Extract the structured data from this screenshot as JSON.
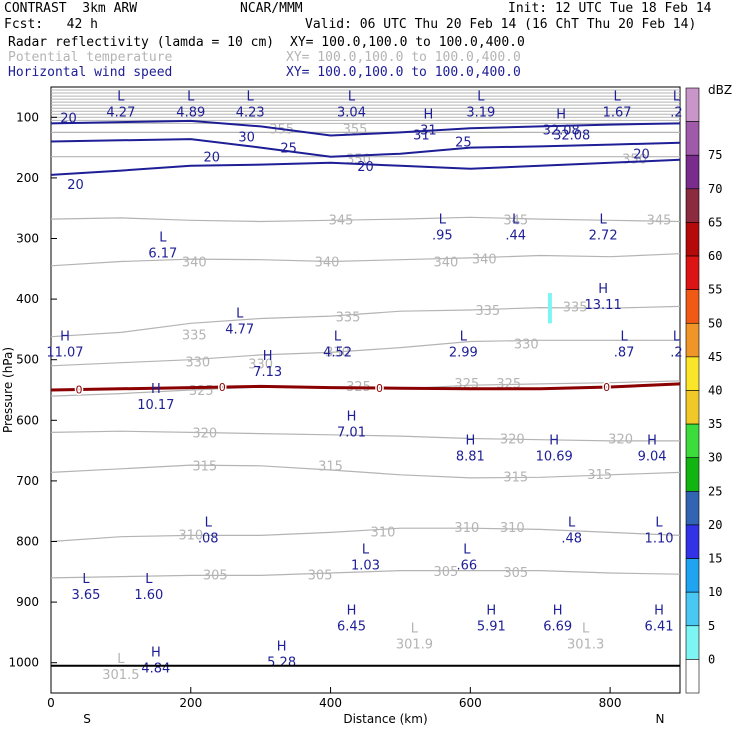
{
  "header": {
    "model": "CONTRAST  3km ARW",
    "org": "NCAR/MMM",
    "init": "Init: 12 UTC Tue 18 Feb 14",
    "fcst": "Fcst:   42 h",
    "valid": "Valid: 06 UTC Thu 20 Feb 14 (16 ChT Thu 20 Feb 14)",
    "field1": "Radar reflectivity (lamda = 10 cm)",
    "field1_xy": "XY= 100.0,100.0 to 100.0,400.0",
    "field2": "Potential temperature",
    "field2_xy": "XY= 100.0,100.0 to 100.0,400.0",
    "field3": "Horizontal wind speed",
    "field3_xy": "XY= 100.0,100.0 to 100.0,400.0"
  },
  "colors": {
    "theta": "#b4b4b4",
    "wind": "#1e1e96",
    "freezing": "#8b0000"
  },
  "chart_data": {
    "type": "contour",
    "xlabel": "Distance (km)",
    "ylabel": "Pressure (hPa)",
    "xlim": [
      0,
      900
    ],
    "ylim": [
      1050,
      50
    ],
    "x_ticks": [
      "0",
      "200",
      "400",
      "600",
      "800"
    ],
    "y_ticks": [
      "100",
      "200",
      "300",
      "400",
      "500",
      "600",
      "700",
      "800",
      "900",
      "1000"
    ],
    "x_end_labels": [
      "S",
      "N"
    ],
    "colorbar": {
      "title": "dBZ",
      "levels": [
        "0",
        "5",
        "10",
        "15",
        "20",
        "25",
        "30",
        "35",
        "40",
        "45",
        "50",
        "55",
        "60",
        "65",
        "70",
        "75"
      ],
      "colors": [
        "#ffffff",
        "#7ef5f5",
        "#49c8f3",
        "#1ea4f0",
        "#3232e6",
        "#3264b4",
        "#12b412",
        "#3cdc3c",
        "#f0c828",
        "#fae628",
        "#f09628",
        "#f05a14",
        "#dc1414",
        "#b40a0a",
        "#8c2a3e",
        "#7a2c8c",
        "#a05aaa",
        "#c896c8"
      ]
    },
    "theta_contours": [
      {
        "value": 355,
        "p": [
          125,
          125,
          125,
          125,
          125,
          125,
          125,
          125,
          125,
          125
        ]
      },
      {
        "value": 350,
        "p": [
          165,
          165,
          165,
          165,
          165,
          165,
          165,
          165,
          165,
          165
        ]
      },
      {
        "value": 345,
        "p": [
          268,
          266,
          270,
          272,
          270,
          268,
          265,
          268,
          270,
          272
        ]
      },
      {
        "value": 340,
        "p": [
          345,
          338,
          334,
          335,
          338,
          335,
          332,
          328,
          330,
          325
        ]
      },
      {
        "value": 335,
        "p": [
          462,
          455,
          440,
          432,
          428,
          420,
          418,
          414,
          415,
          412
        ]
      },
      {
        "value": 330,
        "p": [
          510,
          505,
          500,
          492,
          488,
          480,
          470,
          468,
          468,
          468
        ]
      },
      {
        "value": 325,
        "p": [
          560,
          556,
          550,
          545,
          545,
          548,
          542,
          540,
          538,
          535
        ]
      },
      {
        "value": 320,
        "p": [
          620,
          618,
          620,
          622,
          624,
          626,
          630,
          632,
          634,
          634
        ]
      },
      {
        "value": 315,
        "p": [
          686,
          680,
          674,
          675,
          682,
          690,
          695,
          694,
          690,
          686
        ]
      },
      {
        "value": 310,
        "p": [
          800,
          792,
          790,
          790,
          785,
          778,
          778,
          780,
          785,
          790
        ]
      },
      {
        "value": 305,
        "p": [
          860,
          858,
          856,
          856,
          852,
          848,
          848,
          848,
          852,
          854
        ]
      }
    ],
    "theta_labels": [
      {
        "text": "355",
        "x": 330,
        "p": 120
      },
      {
        "text": "355",
        "x": 435,
        "p": 120
      },
      {
        "text": "350",
        "x": 440,
        "p": 170
      },
      {
        "text": "350",
        "x": 835,
        "p": 170
      },
      {
        "text": "345",
        "x": 415,
        "p": 270
      },
      {
        "text": "345",
        "x": 665,
        "p": 270
      },
      {
        "text": "345",
        "x": 870,
        "p": 270
      },
      {
        "text": "340",
        "x": 205,
        "p": 340
      },
      {
        "text": "340",
        "x": 395,
        "p": 340
      },
      {
        "text": "340",
        "x": 565,
        "p": 340
      },
      {
        "text": "340",
        "x": 620,
        "p": 335
      },
      {
        "text": "335",
        "x": 205,
        "p": 460
      },
      {
        "text": "335",
        "x": 425,
        "p": 430
      },
      {
        "text": "335",
        "x": 625,
        "p": 420
      },
      {
        "text": "335",
        "x": 750,
        "p": 414
      },
      {
        "text": "330",
        "x": 210,
        "p": 505
      },
      {
        "text": "330",
        "x": 300,
        "p": 508
      },
      {
        "text": "330",
        "x": 410,
        "p": 488
      },
      {
        "text": "330",
        "x": 680,
        "p": 475
      },
      {
        "text": "325",
        "x": 215,
        "p": 552
      },
      {
        "text": "325",
        "x": 440,
        "p": 545
      },
      {
        "text": "325",
        "x": 595,
        "p": 540
      },
      {
        "text": "325",
        "x": 655,
        "p": 540
      },
      {
        "text": "320",
        "x": 220,
        "p": 622
      },
      {
        "text": "320",
        "x": 660,
        "p": 632
      },
      {
        "text": "320",
        "x": 815,
        "p": 632
      },
      {
        "text": "315",
        "x": 220,
        "p": 676
      },
      {
        "text": "315",
        "x": 400,
        "p": 676
      },
      {
        "text": "315",
        "x": 665,
        "p": 694
      },
      {
        "text": "315",
        "x": 785,
        "p": 690
      },
      {
        "text": "310",
        "x": 200,
        "p": 790
      },
      {
        "text": "310",
        "x": 475,
        "p": 785
      },
      {
        "text": "310",
        "x": 595,
        "p": 778
      },
      {
        "text": "310",
        "x": 660,
        "p": 778
      },
      {
        "text": "305",
        "x": 235,
        "p": 856
      },
      {
        "text": "305",
        "x": 385,
        "p": 856
      },
      {
        "text": "305",
        "x": 565,
        "p": 850
      },
      {
        "text": "305",
        "x": 665,
        "p": 852
      }
    ],
    "wind_contours": [
      {
        "value": 20,
        "p": [
          195,
          188,
          180,
          178,
          175,
          180,
          185,
          180,
          175,
          170
        ]
      },
      {
        "value": 25,
        "p": [
          140,
          138,
          136,
          150,
          165,
          160,
          150,
          148,
          145,
          142
        ]
      },
      {
        "value": 30,
        "p": [
          110,
          108,
          106,
          115,
          130,
          125,
          118,
          115,
          112,
          110
        ]
      }
    ],
    "wind_labels": [
      {
        "text": "20",
        "x": 25,
        "p": 100
      },
      {
        "text": "20",
        "x": 35,
        "p": 210
      },
      {
        "text": "20",
        "x": 230,
        "p": 165
      },
      {
        "text": "20",
        "x": 450,
        "p": 180
      },
      {
        "text": "20",
        "x": 845,
        "p": 160
      },
      {
        "text": "30",
        "x": 280,
        "p": 132
      },
      {
        "text": "25",
        "x": 340,
        "p": 150
      },
      {
        "text": "25",
        "x": 590,
        "p": 140
      },
      {
        "text": "31",
        "x": 530,
        "p": 128
      },
      {
        "text": "32.08",
        "x": 745,
        "p": 128
      }
    ],
    "freezing_level": {
      "label": "0",
      "p": [
        550,
        548,
        546,
        544,
        546,
        547,
        548,
        548,
        545,
        540
      ],
      "label_x": [
        40,
        245,
        470,
        795
      ]
    },
    "extrema": [
      {
        "type": "L",
        "value": "4.27",
        "x": 100,
        "p": 82,
        "color": "wind"
      },
      {
        "type": "L",
        "value": "4.89",
        "x": 200,
        "p": 82,
        "color": "wind"
      },
      {
        "type": "L",
        "value": "4.23",
        "x": 285,
        "p": 82,
        "color": "wind"
      },
      {
        "type": "L",
        "value": "3.04",
        "x": 430,
        "p": 82,
        "color": "wind"
      },
      {
        "type": "L",
        "value": "3.19",
        "x": 615,
        "p": 82,
        "color": "wind"
      },
      {
        "type": "L",
        "value": "1.67",
        "x": 810,
        "p": 82,
        "color": "wind"
      },
      {
        "type": "L",
        "value": ".2",
        "x": 895,
        "p": 82,
        "color": "wind"
      },
      {
        "type": "H",
        "value": "31",
        "x": 540,
        "p": 112,
        "color": "wind"
      },
      {
        "type": "H",
        "value": "32.08",
        "x": 730,
        "p": 112,
        "color": "wind"
      },
      {
        "type": "L",
        "value": ".95",
        "x": 560,
        "p": 285,
        "color": "wind"
      },
      {
        "type": "L",
        "value": ".44",
        "x": 665,
        "p": 285,
        "color": "wind"
      },
      {
        "type": "L",
        "value": "2.72",
        "x": 790,
        "p": 285,
        "color": "wind"
      },
      {
        "type": "L",
        "value": "6.17",
        "x": 160,
        "p": 315,
        "color": "wind"
      },
      {
        "type": "H",
        "value": "13.11",
        "x": 790,
        "p": 400,
        "color": "wind"
      },
      {
        "type": "L",
        "value": "4.77",
        "x": 270,
        "p": 440,
        "color": "wind"
      },
      {
        "type": "H",
        "value": "11.07",
        "x": 20,
        "p": 478,
        "color": "wind"
      },
      {
        "type": "L",
        "value": "4.52",
        "x": 410,
        "p": 478,
        "color": "wind"
      },
      {
        "type": "L",
        "value": "2.99",
        "x": 590,
        "p": 478,
        "color": "wind"
      },
      {
        "type": "L",
        "value": ".87",
        "x": 820,
        "p": 478,
        "color": "wind"
      },
      {
        "type": "L",
        "value": ".2",
        "x": 895,
        "p": 478,
        "color": "wind"
      },
      {
        "type": "H",
        "value": "7.13",
        "x": 310,
        "p": 510,
        "color": "wind"
      },
      {
        "type": "H",
        "value": "10.17",
        "x": 150,
        "p": 565,
        "color": "wind"
      },
      {
        "type": "H",
        "value": "7.01",
        "x": 430,
        "p": 610,
        "color": "wind"
      },
      {
        "type": "H",
        "value": "8.81",
        "x": 600,
        "p": 650,
        "color": "wind"
      },
      {
        "type": "H",
        "value": "10.69",
        "x": 720,
        "p": 650,
        "color": "wind"
      },
      {
        "type": "H",
        "value": "9.04",
        "x": 860,
        "p": 650,
        "color": "wind"
      },
      {
        "type": "L",
        "value": ".08",
        "x": 225,
        "p": 785,
        "color": "wind"
      },
      {
        "type": "L",
        "value": ".48",
        "x": 745,
        "p": 785,
        "color": "wind"
      },
      {
        "type": "L",
        "value": "1.10",
        "x": 870,
        "p": 785,
        "color": "wind"
      },
      {
        "type": "L",
        "value": "1.03",
        "x": 450,
        "p": 830,
        "color": "wind"
      },
      {
        "type": "L",
        "value": ".66",
        "x": 595,
        "p": 830,
        "color": "wind"
      },
      {
        "type": "L",
        "value": "3.65",
        "x": 50,
        "p": 878,
        "color": "wind"
      },
      {
        "type": "L",
        "value": "1.60",
        "x": 140,
        "p": 878,
        "color": "wind"
      },
      {
        "type": "H",
        "value": "6.45",
        "x": 430,
        "p": 930,
        "color": "wind"
      },
      {
        "type": "H",
        "value": "5.91",
        "x": 630,
        "p": 930,
        "color": "wind"
      },
      {
        "type": "H",
        "value": "6.69",
        "x": 725,
        "p": 930,
        "color": "wind"
      },
      {
        "type": "H",
        "value": "6.41",
        "x": 870,
        "p": 930,
        "color": "wind"
      },
      {
        "type": "L",
        "value": "301.9",
        "x": 520,
        "p": 960,
        "color": "theta"
      },
      {
        "type": "L",
        "value": "301.3",
        "x": 765,
        "p": 960,
        "color": "theta"
      },
      {
        "type": "H",
        "value": "4.84",
        "x": 150,
        "p": 1000,
        "color": "wind"
      },
      {
        "type": "H",
        "value": "5.28",
        "x": 330,
        "p": 990,
        "color": "wind"
      },
      {
        "type": "L",
        "value": "301.5",
        "x": 100,
        "p": 1010,
        "color": "theta"
      }
    ]
  }
}
